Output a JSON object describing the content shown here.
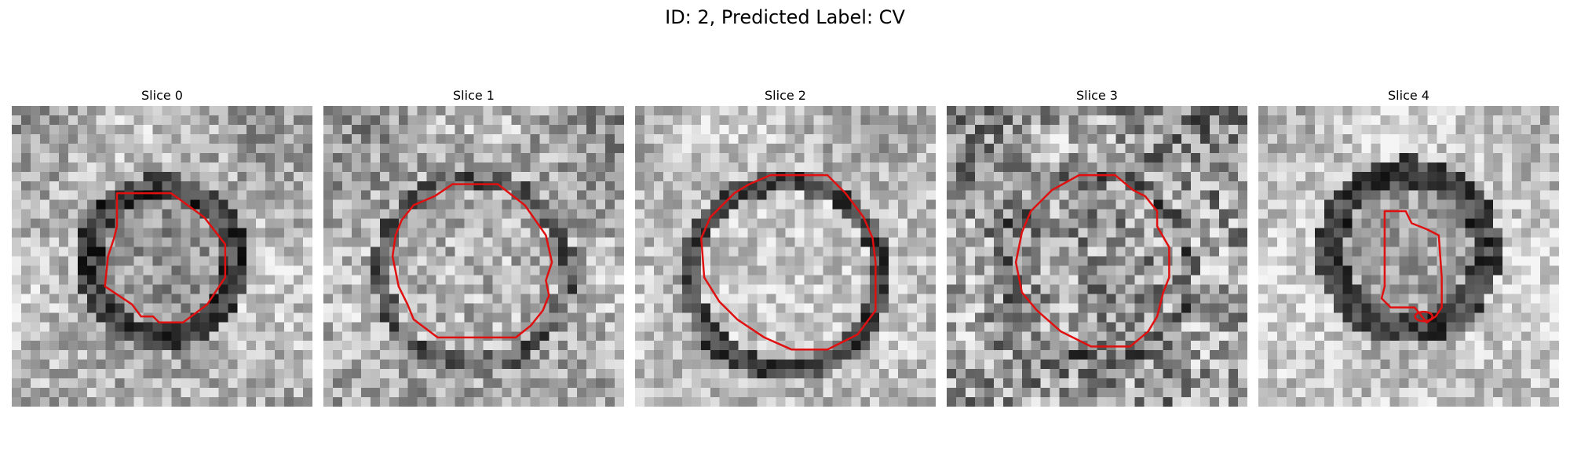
{
  "figure": {
    "title": "ID: 2, Predicted Label: CV",
    "panels": [
      {
        "title": "Slice 0",
        "contour_color": "#e01010"
      },
      {
        "title": "Slice 1",
        "contour_color": "#e01010"
      },
      {
        "title": "Slice 2",
        "contour_color": "#e01010"
      },
      {
        "title": "Slice 3",
        "contour_color": "#e01010"
      },
      {
        "title": "Slice 4",
        "contour_color": "#e01010"
      }
    ]
  }
}
